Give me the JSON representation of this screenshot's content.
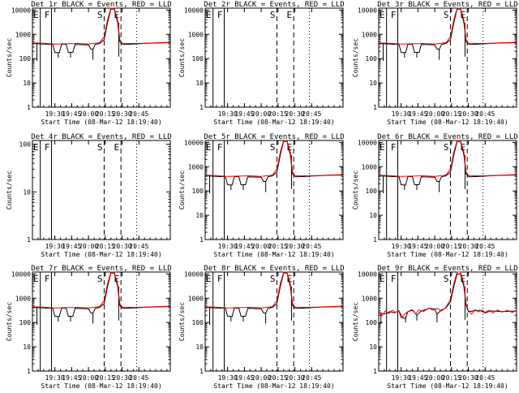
{
  "page": {
    "background": "#ffffff",
    "colors": {
      "events": "#000000",
      "lld": "#ff0000",
      "axis": "#000000"
    }
  },
  "shared": {
    "xlabel": "Start Time (08-Mar-12 18:19:40)",
    "ylabel": "Counts/sec",
    "xticks": [
      "19:30",
      "19:45",
      "20:00",
      "20:15",
      "20:30",
      "20:45"
    ],
    "xtick_values": [
      30,
      45,
      60,
      75,
      90,
      105
    ],
    "xlim": [
      10,
      133
    ],
    "yticks_large": [
      "1",
      "10",
      "100",
      "1000",
      "10000"
    ],
    "yticks_small": [
      "1",
      "10",
      "100"
    ],
    "markers": [
      {
        "label": "E",
        "x": 17,
        "style": "solid"
      },
      {
        "label": "F",
        "x": 27,
        "style": "solid"
      },
      {
        "label": "S",
        "x": 74,
        "style": "dashed"
      },
      {
        "label": "E",
        "x": 89,
        "style": "dashed"
      },
      {
        "label": "",
        "x": 103,
        "style": "dotted"
      }
    ]
  },
  "chart_data": [
    {
      "type": "line",
      "title": "Det 1r BLACK = Events, RED = LLD",
      "detector": "1r",
      "ylim": [
        1,
        12000
      ],
      "yticks": [
        1,
        10,
        100,
        1000,
        10000
      ],
      "series": [
        {
          "name": "Events",
          "color": "#000000",
          "profile": "A"
        },
        {
          "name": "LLD",
          "color": "#ff0000",
          "profile": "A"
        }
      ],
      "markers_shown": true
    },
    {
      "type": "line",
      "title": "Det 2r BLACK = Events, RED = LLD",
      "detector": "2r",
      "ylim": [
        1,
        12000
      ],
      "yticks": [
        1,
        10,
        100,
        1000,
        10000
      ],
      "series": [],
      "markers_shown": true
    },
    {
      "type": "line",
      "title": "Det 3r BLACK = Events, RED = LLD",
      "detector": "3r",
      "ylim": [
        1,
        12000
      ],
      "yticks": [
        1,
        10,
        100,
        1000,
        10000
      ],
      "series": [
        {
          "name": "Events",
          "color": "#000000",
          "profile": "A"
        },
        {
          "name": "LLD",
          "color": "#ff0000",
          "profile": "A"
        }
      ],
      "markers_shown": true
    },
    {
      "type": "line",
      "title": "Det 4r BLACK = Events, RED = LLD",
      "detector": "4r",
      "ylim": [
        1,
        120
      ],
      "yticks": [
        1,
        10,
        100
      ],
      "series": [],
      "markers_shown": true
    },
    {
      "type": "line",
      "title": "Det 5r BLACK = Events, RED = LLD",
      "detector": "5r",
      "ylim": [
        1,
        12000
      ],
      "yticks": [
        1,
        10,
        100,
        1000,
        10000
      ],
      "series": [
        {
          "name": "Events",
          "color": "#000000",
          "profile": "A"
        },
        {
          "name": "LLD",
          "color": "#ff0000",
          "profile": "A"
        }
      ],
      "markers_shown": true
    },
    {
      "type": "line",
      "title": "Det 6r BLACK = Events, RED = LLD",
      "detector": "6r",
      "ylim": [
        1,
        12000
      ],
      "yticks": [
        1,
        10,
        100,
        1000,
        10000
      ],
      "series": [
        {
          "name": "Events",
          "color": "#000000",
          "profile": "A"
        },
        {
          "name": "LLD",
          "color": "#ff0000",
          "profile": "A"
        }
      ],
      "markers_shown": true
    },
    {
      "type": "line",
      "title": "Det 7r BLACK = Events, RED = LLD",
      "detector": "7r",
      "ylim": [
        1,
        12000
      ],
      "yticks": [
        1,
        10,
        100,
        1000,
        10000
      ],
      "series": [
        {
          "name": "Events",
          "color": "#000000",
          "profile": "A"
        },
        {
          "name": "LLD",
          "color": "#ff0000",
          "profile": "A"
        }
      ],
      "markers_shown": true
    },
    {
      "type": "line",
      "title": "Det 8r BLACK = Events, RED = LLD",
      "detector": "8r",
      "ylim": [
        1,
        12000
      ],
      "yticks": [
        1,
        10,
        100,
        1000,
        10000
      ],
      "series": [
        {
          "name": "Events",
          "color": "#000000",
          "profile": "A"
        },
        {
          "name": "LLD",
          "color": "#ff0000",
          "profile": "A"
        }
      ],
      "markers_shown": true
    },
    {
      "type": "line",
      "title": "Det 9r BLACK = Events, RED = LLD",
      "detector": "9r",
      "ylim": [
        1,
        12000
      ],
      "yticks": [
        1,
        10,
        100,
        1000,
        10000
      ],
      "series": [
        {
          "name": "Events",
          "color": "#000000",
          "profile": "B"
        },
        {
          "name": "LLD",
          "color": "#ff0000",
          "profile": "B"
        }
      ],
      "markers_shown": true
    }
  ],
  "profiles": {
    "A": {
      "events": [
        [
          10,
          420
        ],
        [
          20,
          400
        ],
        [
          24,
          390
        ],
        [
          28,
          400
        ],
        [
          30,
          180
        ],
        [
          34,
          175
        ],
        [
          36,
          390
        ],
        [
          40,
          390
        ],
        [
          42,
          180
        ],
        [
          46,
          180
        ],
        [
          48,
          380
        ],
        [
          60,
          370
        ],
        [
          62,
          250
        ],
        [
          64,
          240
        ],
        [
          66,
          380
        ],
        [
          70,
          420
        ],
        [
          74,
          600
        ],
        [
          77,
          3000
        ],
        [
          80,
          11000
        ],
        [
          83,
          11000
        ],
        [
          86,
          3000
        ],
        [
          88,
          500
        ],
        [
          90,
          400
        ],
        [
          92,
          380
        ],
        [
          96,
          390
        ],
        [
          100,
          400
        ],
        [
          110,
          420
        ],
        [
          120,
          440
        ],
        [
          133,
          450
        ]
      ],
      "lld": [
        [
          10,
          440
        ],
        [
          20,
          430
        ],
        [
          30,
          400
        ],
        [
          40,
          410
        ],
        [
          50,
          420
        ],
        [
          60,
          400
        ],
        [
          70,
          450
        ],
        [
          74,
          800
        ],
        [
          77,
          4000
        ],
        [
          80,
          12000
        ],
        [
          83,
          12000
        ],
        [
          86,
          4000
        ],
        [
          88,
          600
        ],
        [
          90,
          430
        ],
        [
          100,
          420
        ],
        [
          110,
          430
        ],
        [
          120,
          450
        ],
        [
          133,
          470
        ]
      ],
      "spikes": [
        [
          14,
          80
        ],
        [
          33,
          110
        ],
        [
          44,
          110
        ],
        [
          64,
          90
        ],
        [
          87,
          120
        ]
      ]
    },
    "B": {
      "events": [
        [
          10,
          260
        ],
        [
          15,
          220
        ],
        [
          20,
          280
        ],
        [
          24,
          250
        ],
        [
          28,
          300
        ],
        [
          30,
          160
        ],
        [
          34,
          150
        ],
        [
          36,
          280
        ],
        [
          40,
          320
        ],
        [
          44,
          200
        ],
        [
          48,
          300
        ],
        [
          55,
          380
        ],
        [
          60,
          360
        ],
        [
          62,
          220
        ],
        [
          66,
          330
        ],
        [
          70,
          400
        ],
        [
          74,
          700
        ],
        [
          77,
          3000
        ],
        [
          80,
          10000
        ],
        [
          83,
          10000
        ],
        [
          86,
          3000
        ],
        [
          88,
          500
        ],
        [
          90,
          280
        ],
        [
          95,
          300
        ],
        [
          100,
          320
        ],
        [
          105,
          250
        ],
        [
          110,
          300
        ],
        [
          120,
          280
        ],
        [
          133,
          300
        ]
      ],
      "lld": [
        [
          10,
          280
        ],
        [
          13,
          190
        ],
        [
          16,
          300
        ],
        [
          19,
          230
        ],
        [
          22,
          320
        ],
        [
          25,
          260
        ],
        [
          28,
          310
        ],
        [
          31,
          170
        ],
        [
          34,
          240
        ],
        [
          37,
          300
        ],
        [
          40,
          340
        ],
        [
          43,
          230
        ],
        [
          46,
          330
        ],
        [
          50,
          280
        ],
        [
          55,
          400
        ],
        [
          58,
          320
        ],
        [
          62,
          380
        ],
        [
          66,
          300
        ],
        [
          70,
          420
        ],
        [
          74,
          900
        ],
        [
          77,
          4000
        ],
        [
          80,
          12000
        ],
        [
          83,
          12000
        ],
        [
          86,
          4000
        ],
        [
          88,
          600
        ],
        [
          90,
          300
        ],
        [
          93,
          220
        ],
        [
          96,
          340
        ],
        [
          99,
          270
        ],
        [
          102,
          330
        ],
        [
          105,
          260
        ],
        [
          108,
          320
        ],
        [
          112,
          250
        ],
        [
          116,
          330
        ],
        [
          120,
          270
        ],
        [
          125,
          320
        ],
        [
          129,
          260
        ],
        [
          133,
          310
        ]
      ],
      "spikes": [
        [
          12,
          90
        ],
        [
          34,
          100
        ],
        [
          44,
          120
        ],
        [
          62,
          100
        ],
        [
          87,
          130
        ]
      ]
    }
  }
}
